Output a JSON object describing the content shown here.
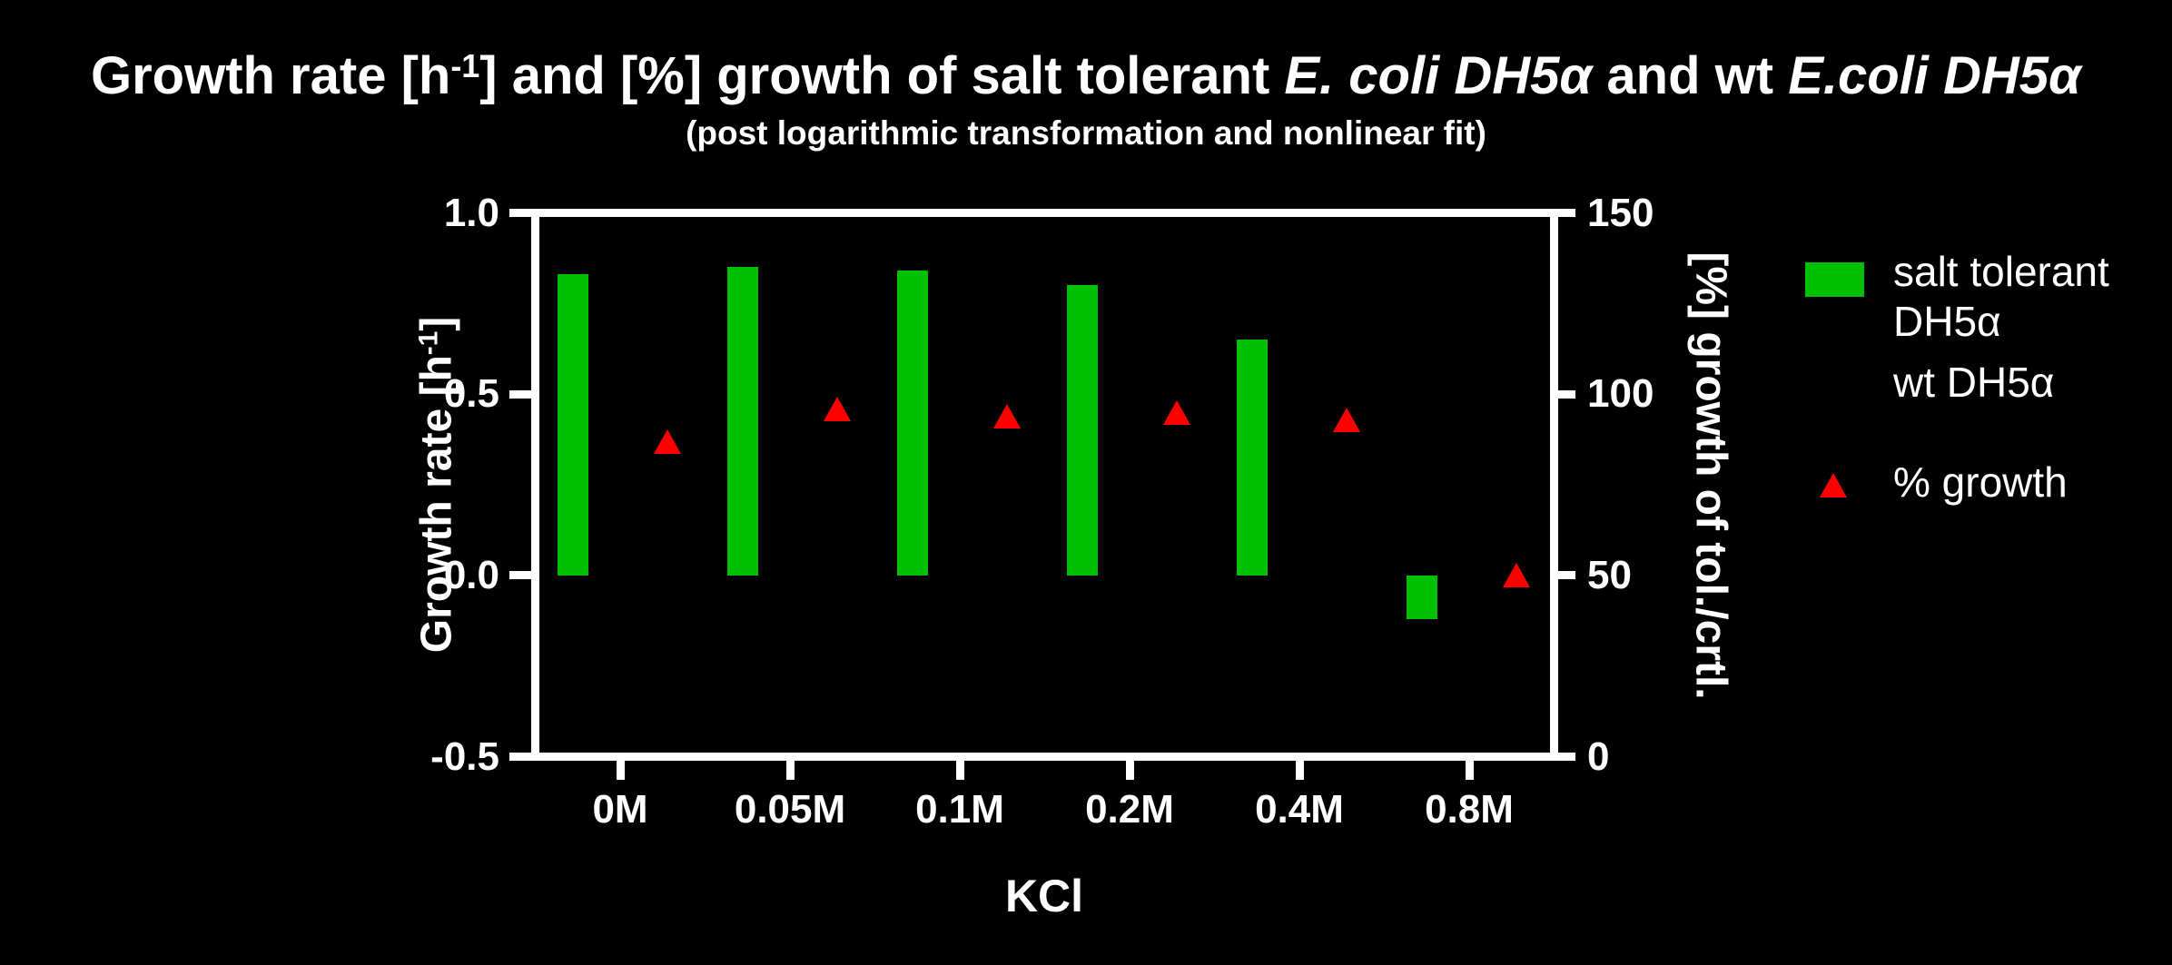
{
  "title": {
    "part1": "Growth rate [h",
    "sup": "-1",
    "part2": "] and [%] growth of salt tolerant ",
    "italic1": "E. coli DH5α",
    "part3": " and wt ",
    "italic2": "E.coli DH5α"
  },
  "subtitle": "(post logarithmic transformation and nonlinear fit)",
  "axis_labels": {
    "left_part1": "Growth rate [h",
    "left_sup": "-1",
    "left_part2": "]",
    "right": "[%] growth of tol./crtl.",
    "x": "KCl"
  },
  "legend": {
    "items": [
      {
        "label": "salt tolerant DH5α",
        "marker": "square",
        "color": "#00BF00"
      },
      {
        "label": "wt DH5α",
        "marker": "square",
        "color": "#000000"
      },
      {
        "label": "% growth",
        "marker": "triangle-up",
        "color": "#FF0000"
      }
    ]
  },
  "colors": {
    "background": "#000000",
    "axis": "#FFFFFF",
    "text": "#FFFFFF",
    "bar_green": "#00BF00",
    "marker_red": "#FF0000"
  },
  "chart_data": {
    "type": "bar",
    "title": "Growth rate [h-1] and [%] growth of salt tolerant E. coli DH5α and wt E.coli DH5α",
    "subtitle": "(post logarithmic transformation and nonlinear fit)",
    "categories": [
      "0M",
      "0.05M",
      "0.1M",
      "0.2M",
      "0.4M",
      "0.8M"
    ],
    "series": [
      {
        "name": "salt tolerant DH5α",
        "type": "bar",
        "axis": "left",
        "color": "#00BF00",
        "values": [
          0.83,
          0.85,
          0.84,
          0.8,
          0.65,
          -0.12
        ]
      },
      {
        "name": "wt DH5α",
        "type": "bar",
        "axis": "left",
        "color": "#000000",
        "values": [
          null,
          null,
          null,
          null,
          null,
          null
        ]
      },
      {
        "name": "% growth",
        "type": "scatter",
        "marker": "triangle-up",
        "axis": "right",
        "color": "#FF0000",
        "values": [
          87,
          96,
          94,
          95,
          93,
          50
        ]
      }
    ],
    "x_axis": {
      "label": "KCl",
      "tick_labels": [
        "0M",
        "0.05M",
        "0.1M",
        "0.2M",
        "0.4M",
        "0.8M"
      ]
    },
    "left_axis": {
      "label": "Growth rate [h-1]",
      "range": [
        -0.5,
        1.0
      ],
      "ticks": [
        "1.0",
        "0.5",
        "0.0",
        "-0.5"
      ]
    },
    "right_axis": {
      "label": "[%] growth of tol./crtl.",
      "range": [
        0,
        150
      ],
      "ticks": [
        "150",
        "100",
        "50",
        "0"
      ]
    },
    "grid": false,
    "legend_position": "right",
    "background": "#000000"
  }
}
